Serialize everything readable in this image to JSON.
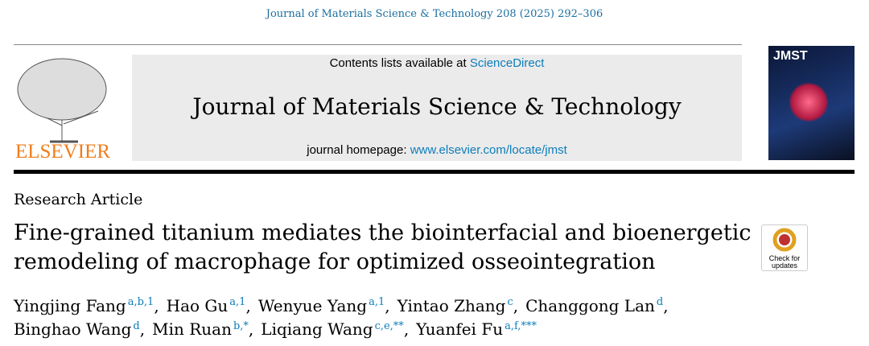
{
  "header": {
    "citation": "Journal of Materials Science & Technology 208 (2025) 292–306",
    "contents_text": "Contents lists available at",
    "contents_link": "ScienceDirect",
    "journal": "Journal of Materials Science & Technology",
    "homepage_text": "journal homepage:",
    "homepage_link": "www.elsevier.com/locate/jmst",
    "publisher": "ELSEVIER",
    "cover_title": "JMST"
  },
  "article": {
    "type": "Research Article",
    "title_lines": [
      "Fine-grained titanium mediates the biointerfacial and bioenergetic",
      "remodeling of macrophage for optimized osseointegration"
    ],
    "check_updates": "Check for updates",
    "author_lines": [
      [
        {
          "name": "Yingjing Fang",
          "affil": "a,b,1",
          "after": ","
        },
        {
          "name": "Hao Gu",
          "affil": "a,1",
          "after": ","
        },
        {
          "name": "Wenyue Yang",
          "affil": "a,1",
          "after": ","
        },
        {
          "name": "Yintao Zhang",
          "affil": "c",
          "after": ","
        },
        {
          "name": "Changgong Lan",
          "affil": "d",
          "after": ","
        }
      ],
      [
        {
          "name": "Binghao Wang",
          "affil": "d",
          "after": ","
        },
        {
          "name": "Min Ruan",
          "affil": "b,*",
          "after": ","
        },
        {
          "name": "Liqiang Wang",
          "affil": "c,e,**",
          "after": ","
        },
        {
          "name": "Yuanfei Fu",
          "affil": "a,f,***"
        }
      ]
    ]
  }
}
